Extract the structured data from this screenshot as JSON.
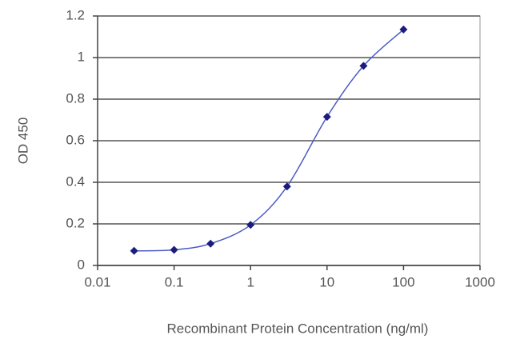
{
  "chart_data": {
    "type": "line",
    "x_label": "Recombinant Protein Concentration (ng/ml)",
    "y_label": "OD 450",
    "x": [
      0.03,
      0.1,
      0.3,
      1,
      3,
      10,
      30,
      100
    ],
    "series": [
      {
        "color": "#1c1c80",
        "line_color": "#4b5cc4",
        "values": [
          0.07,
          0.075,
          0.105,
          0.195,
          0.38,
          0.715,
          0.96,
          1.135
        ]
      }
    ],
    "xscale": "log",
    "xlim": [
      0.01,
      1000
    ],
    "xticks": [
      0.01,
      0.1,
      1,
      10,
      100,
      1000
    ],
    "ylim": [
      0,
      1.2
    ],
    "yticks": [
      0,
      0.2,
      0.4,
      0.6,
      0.8,
      1,
      1.2
    ],
    "grid": true
  }
}
